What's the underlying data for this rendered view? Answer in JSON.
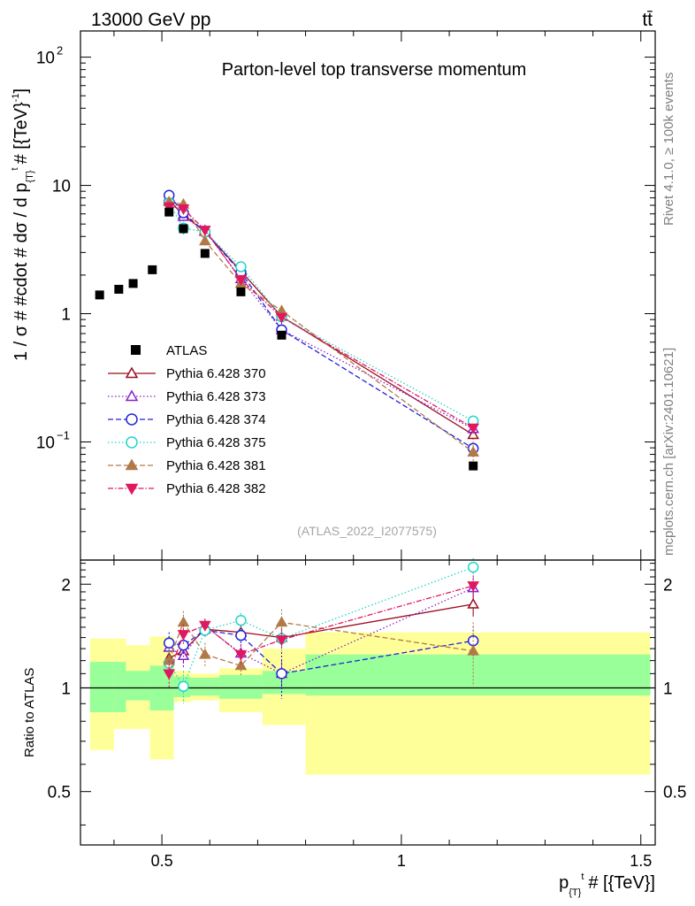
{
  "header": {
    "energy_label": "13000 GeV pp",
    "process_label": "tt̄"
  },
  "side_labels": {
    "rivet": "Rivet 4.1.0, ≥ 100k events",
    "mcplots": "mcplots.cern.ch [arXiv:2401.10621]"
  },
  "chart_data": {
    "type": "scatter",
    "title": "Parton-level top transverse momentum",
    "analysis_id": "(ATLAS_2022_I2077575)",
    "xlabel": {
      "main": "p",
      "sub": "{T}",
      "sup": "t",
      "rest": "# [{TeV}]"
    },
    "ylabel": {
      "main": "1 / σ # #cdot # dσ / d p",
      "sub": "{T}",
      "sup": "t",
      "rest": "# [{TeV}",
      "sup2": "-1",
      "end": "]"
    },
    "ratio_ylabel": "Ratio to ATLAS",
    "xlim": [
      0.33,
      1.53
    ],
    "ylim_main": [
      0.012,
      160
    ],
    "ylim_ratio": [
      0.35,
      2.35
    ],
    "x_ticks": [
      {
        "v": 0.5,
        "label": "0.5"
      },
      {
        "v": 1,
        "label": "1"
      },
      {
        "v": 1.5,
        "label": "1.5"
      }
    ],
    "y_ticks_main": [
      {
        "v": 0.1,
        "base": "10",
        "exp": "−1"
      },
      {
        "v": 1,
        "base": "1",
        "exp": ""
      },
      {
        "v": 10,
        "base": "10",
        "exp": ""
      },
      {
        "v": 100,
        "base": "10",
        "exp": "2"
      }
    ],
    "y_ticks_ratio": [
      {
        "v": 0.5,
        "label": "0.5"
      },
      {
        "v": 1,
        "label": "1"
      },
      {
        "v": 2,
        "label": "2"
      }
    ],
    "data": {
      "name": "ATLAS",
      "x": [
        0.37,
        0.41,
        0.44,
        0.48,
        0.515,
        0.545,
        0.59,
        0.665,
        0.75,
        1.15
      ],
      "y": [
        1.4,
        1.55,
        1.72,
        2.2,
        6.2,
        4.6,
        2.95,
        1.48,
        0.68,
        0.065
      ]
    },
    "bands": {
      "edges": [
        0.35,
        0.4,
        0.425,
        0.45,
        0.475,
        0.5,
        0.525,
        0.56,
        0.62,
        0.71,
        0.8,
        1.52
      ],
      "green_lo": [
        0.85,
        0.85,
        0.92,
        0.92,
        0.86,
        0.86,
        0.94,
        0.95,
        0.93,
        0.96,
        0.95
      ],
      "green_hi": [
        1.19,
        1.19,
        1.12,
        1.12,
        1.16,
        1.16,
        1.08,
        1.07,
        1.09,
        1.12,
        1.25
      ],
      "yellow_lo": [
        0.66,
        0.76,
        0.76,
        0.76,
        0.62,
        0.62,
        0.91,
        0.92,
        0.85,
        0.78,
        0.56
      ],
      "yellow_hi": [
        1.39,
        1.39,
        1.33,
        1.33,
        1.41,
        1.41,
        1.12,
        1.1,
        1.14,
        1.3,
        1.45
      ]
    },
    "series": [
      {
        "name": "Pythia 6.428 370",
        "color": "#9b0d1f",
        "marker": "tri_up_open",
        "dash": "",
        "ratio": [
          1.22,
          1.28,
          1.48,
          1.45,
          1.4,
          1.75
        ],
        "err": [
          0.1,
          0.1,
          0.07,
          0.08,
          0.1,
          0.14
        ]
      },
      {
        "name": "Pythia 6.428 373",
        "color": "#8a1ecc",
        "marker": "tri_up_open",
        "dash": "1.5,2.5",
        "ratio": [
          1.31,
          1.24,
          1.51,
          1.26,
          1.1,
          1.95
        ],
        "err": [
          0.1,
          0.1,
          0.07,
          0.08,
          0.1,
          0.14
        ]
      },
      {
        "name": "Pythia 6.428 374",
        "color": "#2222d8",
        "marker": "circle_open",
        "dash": "6,3",
        "ratio": [
          1.35,
          1.33,
          1.47,
          1.42,
          1.1,
          1.37
        ],
        "err": [
          0.1,
          0.1,
          0.07,
          0.08,
          0.17,
          0.14
        ]
      },
      {
        "name": "Pythia 6.428 375",
        "color": "#22d6c8",
        "marker": "circle_open",
        "dash": "1.5,2.5",
        "ratio": [
          1.18,
          1.01,
          1.47,
          1.57,
          1.39,
          2.24
        ],
        "err": [
          0.1,
          0.11,
          0.07,
          0.08,
          0.1,
          0.14
        ]
      },
      {
        "name": "Pythia 6.428 381",
        "color": "#b07a48",
        "marker": "tri_up_filled",
        "dash": "6,3",
        "ratio": [
          1.2,
          1.55,
          1.25,
          1.16,
          1.55,
          1.28
        ],
        "err": [
          0.1,
          0.12,
          0.1,
          0.08,
          0.14,
          0.27
        ]
      },
      {
        "name": "Pythia 6.428 382",
        "color": "#e0185f",
        "marker": "tri_down_filled",
        "dash": "6,2,1.5,2",
        "ratio": [
          1.1,
          1.43,
          1.52,
          1.25,
          1.38,
          1.98
        ],
        "err": [
          0.1,
          0.1,
          0.07,
          0.08,
          0.1,
          0.14
        ]
      }
    ]
  }
}
